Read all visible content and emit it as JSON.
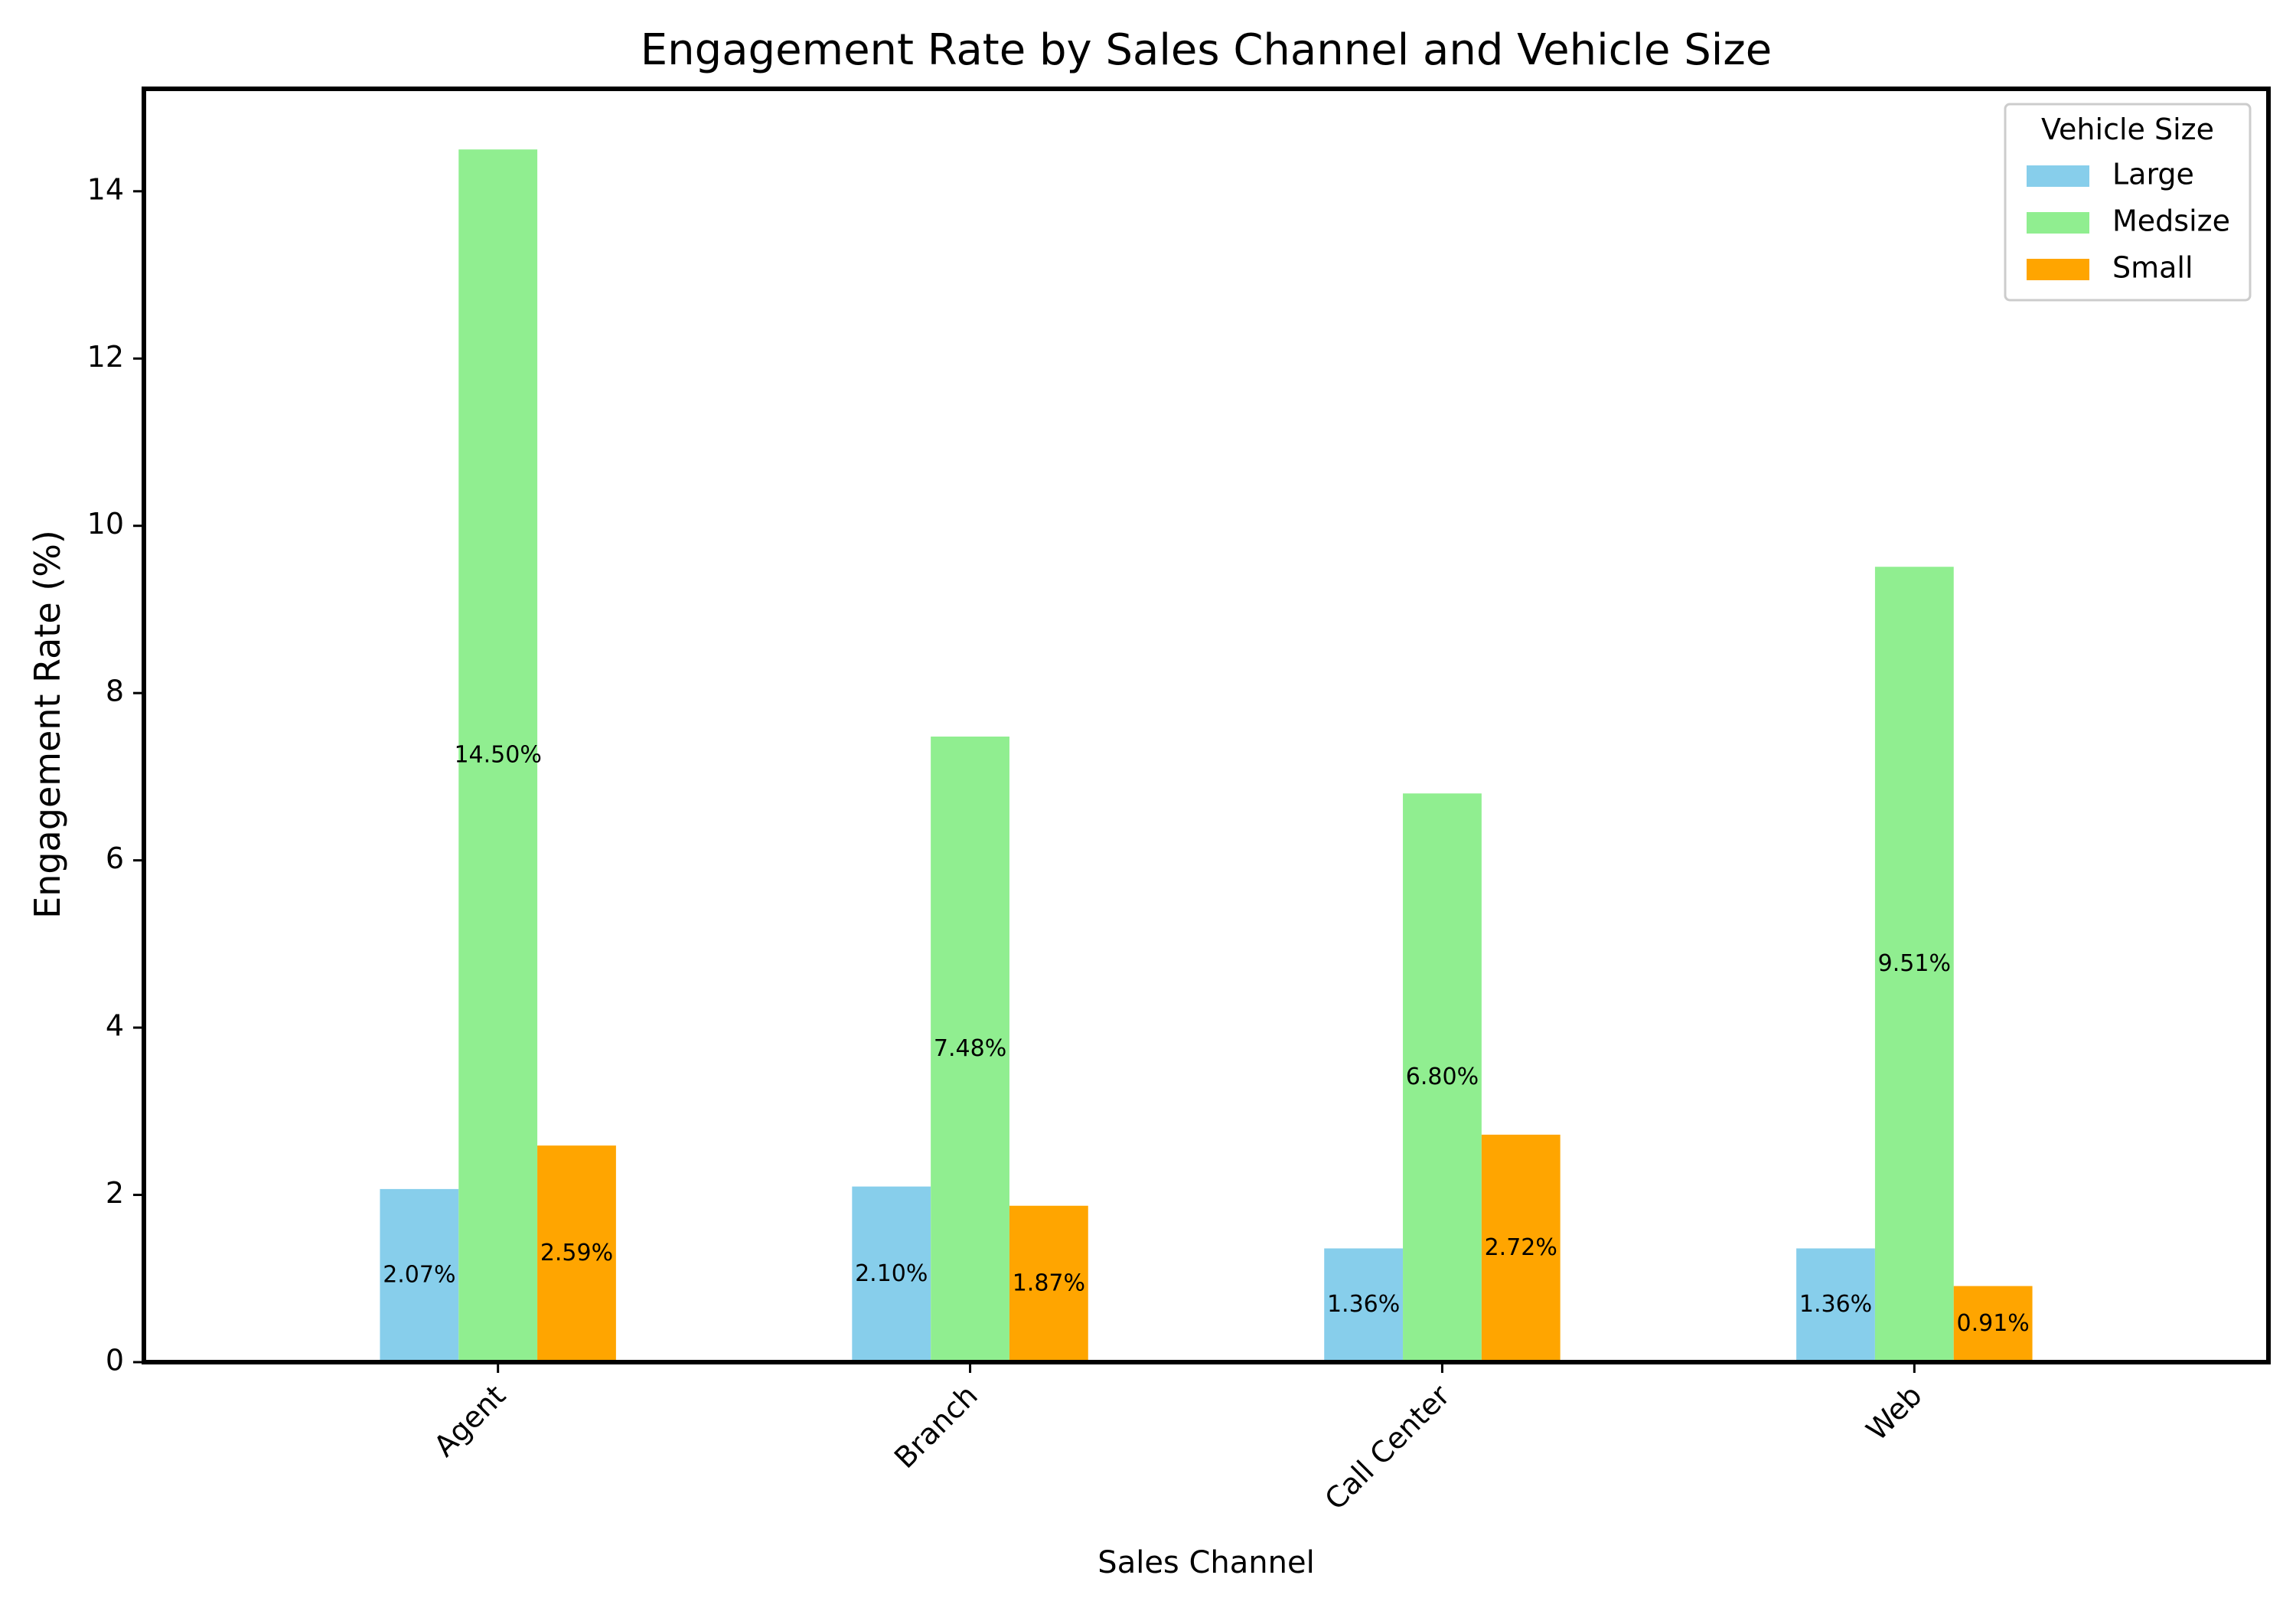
{
  "chart_data": {
    "type": "bar",
    "title": "Engagement Rate by Sales Channel and Vehicle Size",
    "xlabel": "Sales Channel",
    "ylabel": "Engagement Rate (%)",
    "categories": [
      "Agent",
      "Branch",
      "Call Center",
      "Web"
    ],
    "series": [
      {
        "name": "Large",
        "color": "#87CEEB",
        "values": [
          2.07,
          2.1,
          1.36,
          1.36
        ],
        "labels": [
          "2.07%",
          "2.10%",
          "1.36%",
          "1.36%"
        ]
      },
      {
        "name": "Medsize",
        "color": "#90EE90",
        "values": [
          14.5,
          7.48,
          6.8,
          9.51
        ],
        "labels": [
          "14.50%",
          "7.48%",
          "6.80%",
          "9.51%"
        ]
      },
      {
        "name": "Small",
        "color": "#FFA500",
        "values": [
          2.59,
          1.87,
          2.72,
          0.91
        ],
        "labels": [
          "2.59%",
          "1.87%",
          "2.72%",
          "0.91%"
        ]
      }
    ],
    "ylim": [
      0,
      15.225
    ],
    "yticks": [
      0,
      2,
      4,
      6,
      8,
      10,
      12,
      14
    ],
    "ytick_labels": [
      "0",
      "2",
      "4",
      "6",
      "8",
      "10",
      "12",
      "14"
    ],
    "legend": {
      "title": "Vehicle Size",
      "placement": "top-right"
    },
    "grid": false
  }
}
